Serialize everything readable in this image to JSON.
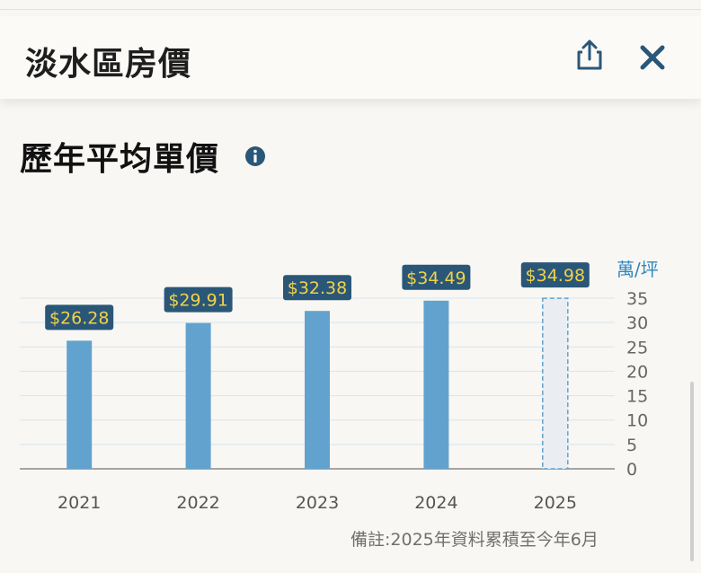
{
  "header": {
    "title": "淡水區房價"
  },
  "section": {
    "title": "歷年平均單價"
  },
  "icons": {
    "share": "share-icon",
    "close": "close-icon",
    "info": "info-icon"
  },
  "colors": {
    "bar": "#62a2cf",
    "projected_bar": "#eaeef3",
    "projected_border": "#62a2cf",
    "label_bg": "#2a5778",
    "label_text": "#f2d14a",
    "accent": "#2f86bf",
    "icon": "#2a5778"
  },
  "chart_data": {
    "type": "bar",
    "categories": [
      "2021",
      "2022",
      "2023",
      "2024",
      "2025"
    ],
    "values": [
      26.28,
      29.91,
      32.38,
      34.49,
      34.98
    ],
    "value_labels": [
      "$26.28",
      "$29.91",
      "$32.38",
      "$34.49",
      "$34.98"
    ],
    "projected": [
      false,
      false,
      false,
      false,
      true
    ],
    "ylim": [
      0,
      35
    ],
    "yticks": [
      "0",
      "5",
      "10",
      "15",
      "20",
      "25",
      "30",
      "35"
    ],
    "yaxis_position": "right",
    "unit_label": "萬/坪",
    "grid": true
  },
  "footnote": "備註:2025年資料累積至今年6月"
}
